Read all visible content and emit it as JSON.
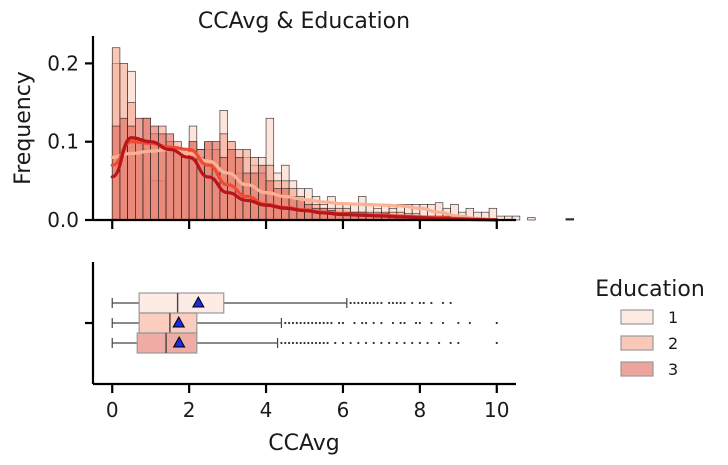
{
  "chart_data": {
    "type": "histogram+boxplot",
    "title": "CCAvg & Education",
    "xlabel": "CCAvg",
    "ylabel": "Frequency",
    "xlim": [
      -0.5,
      10.5
    ],
    "ylim_top": [
      0,
      0.235
    ],
    "x_ticks": [
      0,
      2,
      4,
      6,
      8,
      10
    ],
    "y_ticks": [
      "0.0",
      "0.1",
      "0.2"
    ],
    "y_tick_values": [
      0.0,
      0.1,
      0.2
    ],
    "bin_width": 0.2,
    "legend": {
      "title": "Education",
      "placement": "right",
      "entries": [
        "1",
        "2",
        "3"
      ]
    },
    "colors": {
      "edu1": "#fcdcd0",
      "edu2": "#f6a48b",
      "edu3": "#e0675a",
      "kde1": "#fbb294",
      "kde2": "#ef4a32",
      "kde3": "#b8141c",
      "mean_marker": "#1a2be0"
    },
    "series": [
      {
        "name": "1",
        "hist_values": [
          0.2,
          0.09,
          0.19,
          0.1,
          0.09,
          0.05,
          0.05,
          0.1,
          0.09,
          0.09,
          0.12,
          0.09,
          0.09,
          0.1,
          0.14,
          0.1,
          0.06,
          0.08,
          0.07,
          0.08,
          0.13,
          0.06,
          0.07,
          0.05,
          0.04,
          0.04,
          0.03,
          0.02,
          0.03,
          0.02,
          0.02,
          0.02,
          0.03,
          0.02,
          0.015,
          0.02,
          0.015,
          0.02,
          0.02,
          0.02,
          0.02,
          0.02,
          0.022,
          0.015,
          0.02,
          0.01,
          0.015,
          0.01,
          0.01,
          0.015,
          0.005,
          0.005,
          0.005,
          0,
          0.003,
          0,
          0,
          0,
          0,
          0
        ],
        "kde_x": [
          0,
          0.5,
          1,
          1.5,
          2,
          2.5,
          3,
          3.5,
          4,
          4.5,
          5,
          5.5,
          6,
          6.5,
          7,
          7.5,
          8,
          8.5,
          9,
          9.5,
          10
        ],
        "kde_y": [
          0.08,
          0.085,
          0.088,
          0.09,
          0.085,
          0.075,
          0.06,
          0.045,
          0.035,
          0.03,
          0.026,
          0.023,
          0.021,
          0.02,
          0.019,
          0.018,
          0.015,
          0.01,
          0.005,
          0.002,
          0.0
        ],
        "box": {
          "min": 0,
          "q1": 0.7,
          "median": 1.7,
          "q3": 2.9,
          "whisker_high": 6.1,
          "mean": 2.24
        },
        "outliers": [
          6.2,
          6.3,
          6.4,
          6.5,
          6.6,
          6.7,
          6.8,
          6.9,
          7.0,
          7.2,
          7.3,
          7.4,
          7.5,
          7.6,
          7.8,
          8.0,
          8.1,
          8.3,
          8.6,
          8.8
        ]
      },
      {
        "name": "2",
        "hist_values": [
          0.22,
          0.2,
          0.15,
          0.1,
          0.13,
          0.11,
          0.12,
          0.1,
          0.1,
          0.09,
          0.1,
          0.08,
          0.1,
          0.09,
          0.11,
          0.1,
          0.09,
          0.09,
          0.08,
          0.06,
          0.07,
          0.05,
          0.05,
          0.04,
          0.03,
          0.025,
          0.02,
          0.015,
          0.015,
          0.015,
          0.015,
          0.01,
          0.01,
          0.01,
          0.01,
          0.01,
          0.01,
          0.01,
          0.008,
          0.008,
          0.005,
          0.005,
          0.005,
          0.005,
          0.005,
          0.003,
          0.003,
          0.003,
          0,
          0.002,
          0,
          0,
          0,
          0,
          0,
          0,
          0,
          0,
          0,
          0.002
        ],
        "kde_x": [
          0,
          0.5,
          1,
          1.5,
          2,
          2.5,
          3,
          3.5,
          4,
          4.5,
          5,
          5.5,
          6,
          6.5,
          7,
          7.5,
          8,
          8.5,
          9,
          9.5,
          10
        ],
        "kde_y": [
          0.07,
          0.1,
          0.098,
          0.093,
          0.09,
          0.07,
          0.045,
          0.03,
          0.02,
          0.016,
          0.013,
          0.01,
          0.008,
          0.007,
          0.006,
          0.005,
          0.004,
          0.003,
          0.002,
          0.001,
          0.0
        ],
        "box": {
          "min": 0,
          "q1": 0.7,
          "median": 1.5,
          "q3": 2.2,
          "whisker_high": 4.4,
          "mean": 1.73
        },
        "outliers": [
          4.5,
          4.6,
          4.7,
          4.8,
          4.9,
          5.0,
          5.1,
          5.2,
          5.3,
          5.4,
          5.5,
          5.6,
          5.7,
          5.9,
          6.0,
          6.3,
          6.5,
          6.6,
          6.8,
          7.0,
          7.3,
          7.5,
          7.6,
          7.9,
          8.0,
          8.3,
          8.6,
          9.0,
          9.3,
          10.0
        ]
      },
      {
        "name": "3",
        "hist_values": [
          0.12,
          0.13,
          0.12,
          0.13,
          0.13,
          0.12,
          0.11,
          0.11,
          0.09,
          0.08,
          0.1,
          0.09,
          0.1,
          0.1,
          0.08,
          0.09,
          0.08,
          0.06,
          0.06,
          0.07,
          0.05,
          0.04,
          0.04,
          0.03,
          0.025,
          0.02,
          0.015,
          0.015,
          0.012,
          0.01,
          0.01,
          0.01,
          0.01,
          0.008,
          0.008,
          0.008,
          0.006,
          0.006,
          0.005,
          0.005,
          0.005,
          0.004,
          0.004,
          0.003,
          0.003,
          0.002,
          0.002,
          0.002,
          0,
          0.001,
          0,
          0,
          0,
          0,
          0,
          0,
          0,
          0,
          0,
          0.001
        ],
        "kde_x": [
          0,
          0.5,
          1,
          1.5,
          2,
          2.5,
          3,
          3.5,
          4,
          4.5,
          5,
          5.5,
          6,
          6.5,
          7,
          7.5,
          8,
          8.5,
          9,
          9.5,
          10
        ],
        "kde_y": [
          0.055,
          0.105,
          0.1,
          0.09,
          0.08,
          0.055,
          0.035,
          0.025,
          0.019,
          0.015,
          0.012,
          0.009,
          0.007,
          0.006,
          0.005,
          0.004,
          0.003,
          0.002,
          0.001,
          0.0005,
          0.0
        ],
        "box": {
          "min": 0,
          "q1": 0.65,
          "median": 1.4,
          "q3": 2.2,
          "whisker_high": 4.3,
          "mean": 1.74
        },
        "outliers": [
          4.4,
          4.5,
          4.6,
          4.7,
          4.8,
          4.9,
          5.0,
          5.1,
          5.2,
          5.3,
          5.4,
          5.5,
          5.6,
          5.8,
          6.0,
          6.2,
          6.4,
          6.6,
          6.8,
          7.0,
          7.2,
          7.4,
          7.6,
          7.8,
          8.0,
          8.2,
          8.5,
          8.8,
          9.0,
          10.0
        ]
      }
    ]
  }
}
